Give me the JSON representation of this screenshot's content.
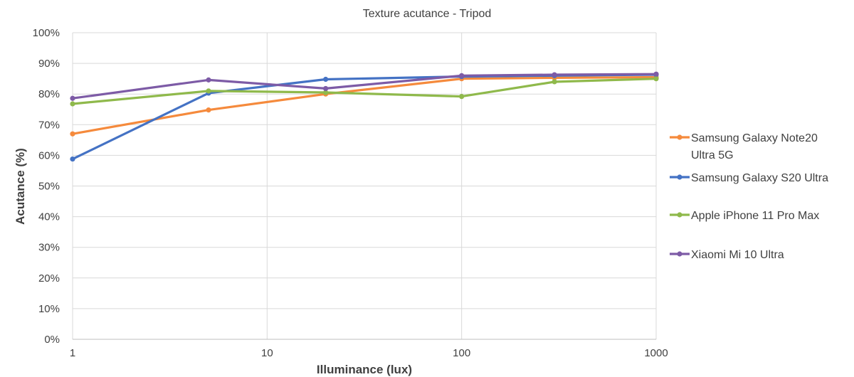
{
  "chart_data": {
    "type": "line",
    "title": "Texture acutance - Tripod",
    "xlabel": "Illuminance (lux)",
    "ylabel": "Acutance (%)",
    "x_scale": "log",
    "xlim": [
      1,
      1000
    ],
    "ylim": [
      0,
      100
    ],
    "x_ticks": [
      "1",
      "10",
      "100",
      "1000"
    ],
    "y_ticks": [
      "0%",
      "10%",
      "20%",
      "30%",
      "40%",
      "50%",
      "60%",
      "70%",
      "80%",
      "90%",
      "100%"
    ],
    "grid": true,
    "legend_position": "right",
    "x": [
      1,
      5,
      20,
      100,
      300,
      1000
    ],
    "series": [
      {
        "name": "Samsung Galaxy Note20 Ultra 5G",
        "legend_lines": [
          "Samsung Galaxy Note20",
          "Ultra 5G"
        ],
        "color": "#f58a3c",
        "values": [
          67,
          74.8,
          80,
          85,
          85.3,
          85.5
        ]
      },
      {
        "name": "Samsung Galaxy S20 Ultra",
        "legend_lines": [
          "Samsung Galaxy S20 Ultra"
        ],
        "color": "#4472c4",
        "values": [
          58.8,
          80.3,
          84.8,
          85.7,
          86,
          86.3
        ]
      },
      {
        "name": "Apple iPhone 11 Pro Max",
        "legend_lines": [
          "Apple iPhone 11 Pro Max"
        ],
        "color": "#8fb94b",
        "values": [
          76.8,
          81,
          80.5,
          79.2,
          84,
          85
        ]
      },
      {
        "name": "Xiaomi Mi 10 Ultra",
        "legend_lines": [
          "Xiaomi Mi 10 Ultra"
        ],
        "color": "#7d5ba6",
        "values": [
          78.6,
          84.6,
          81.8,
          86,
          86.3,
          86.5
        ]
      }
    ]
  }
}
